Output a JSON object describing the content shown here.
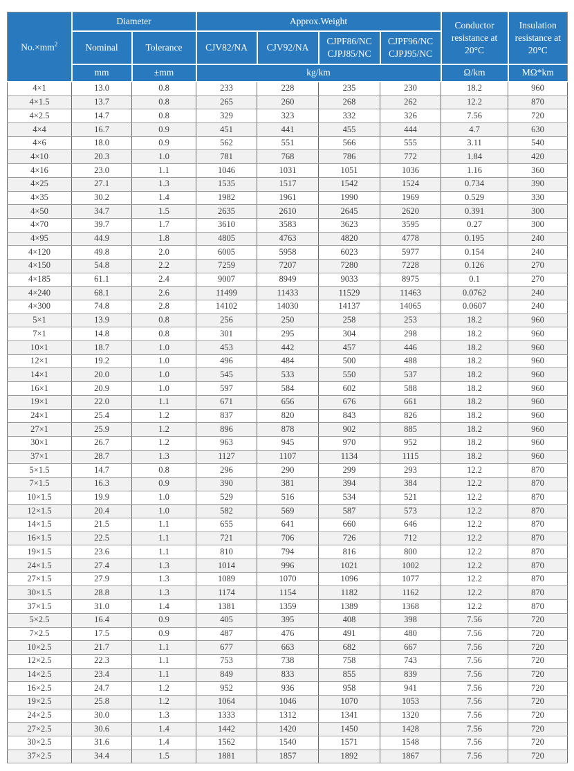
{
  "colors": {
    "header_blue": "#2979BE",
    "row_alt_gray": "#F1F1F1",
    "header_text": "#FFFFFF",
    "body_text": "#3D3D3D"
  },
  "table": {
    "header": {
      "no_label": "No.×mm",
      "no_sup": "2",
      "diameter": "Diameter",
      "nominal": "Nominal",
      "tolerance": "Tolerance",
      "approx_weight": "Approx.Weight",
      "cjv82": "CJV82/NA",
      "cjv92": "CJV92/NA",
      "cjpf86_line1": "CJPF86/NC",
      "cjpf86_line2": "CJPJ85/NC",
      "cjpf96_line1": "CJPF96/NC",
      "cjpf96_line2": "CJPJ95/NC",
      "conductor_resistance": "Conductor resistance at 20°C",
      "insulation_resistance": "Insulation resistance at 20°C"
    },
    "units": {
      "mm": "mm",
      "tolerance_mm": "±mm",
      "weight": "kg/km",
      "conductor": "Ω/km",
      "insulation": "MΩ*km"
    },
    "rows": [
      [
        "4×1",
        "13.0",
        "0.8",
        "233",
        "228",
        "235",
        "230",
        "18.2",
        "960"
      ],
      [
        "4×1.5",
        "13.7",
        "0.8",
        "265",
        "260",
        "268",
        "262",
        "12.2",
        "870"
      ],
      [
        "4×2.5",
        "14.7",
        "0.8",
        "329",
        "323",
        "332",
        "326",
        "7.56",
        "720"
      ],
      [
        "4×4",
        "16.7",
        "0.9",
        "451",
        "441",
        "455",
        "444",
        "4.7",
        "630"
      ],
      [
        "4×6",
        "18.0",
        "0.9",
        "562",
        "551",
        "566",
        "555",
        "3.11",
        "540"
      ],
      [
        "4×10",
        "20.3",
        "1.0",
        "781",
        "768",
        "786",
        "772",
        "1.84",
        "420"
      ],
      [
        "4×16",
        "23.0",
        "1.1",
        "1046",
        "1031",
        "1051",
        "1036",
        "1.16",
        "360"
      ],
      [
        "4×25",
        "27.1",
        "1.3",
        "1535",
        "1517",
        "1542",
        "1524",
        "0.734",
        "390"
      ],
      [
        "4×35",
        "30.2",
        "1.4",
        "1982",
        "1961",
        "1990",
        "1969",
        "0.529",
        "330"
      ],
      [
        "4×50",
        "34.7",
        "1.5",
        "2635",
        "2610",
        "2645",
        "2620",
        "0.391",
        "300"
      ],
      [
        "4×70",
        "39.7",
        "1.7",
        "3610",
        "3583",
        "3623",
        "3595",
        "0.27",
        "300"
      ],
      [
        "4×95",
        "44.9",
        "1.8",
        "4805",
        "4763",
        "4820",
        "4778",
        "0.195",
        "240"
      ],
      [
        "4×120",
        "49.8",
        "2.0",
        "6005",
        "5958",
        "6023",
        "5977",
        "0.154",
        "240"
      ],
      [
        "4×150",
        "54.8",
        "2.2",
        "7259",
        "7207",
        "7280",
        "7228",
        "0.126",
        "270"
      ],
      [
        "4×185",
        "61.1",
        "2.4",
        "9007",
        "8949",
        "9033",
        "8975",
        "0.1",
        "270"
      ],
      [
        "4×240",
        "68.1",
        "2.6",
        "11499",
        "11433",
        "11529",
        "11463",
        "0.0762",
        "240"
      ],
      [
        "4×300",
        "74.8",
        "2.8",
        "14102",
        "14030",
        "14137",
        "14065",
        "0.0607",
        "240"
      ],
      [
        "5×1",
        "13.9",
        "0.8",
        "256",
        "250",
        "258",
        "253",
        "18.2",
        "960"
      ],
      [
        "7×1",
        "14.8",
        "0.8",
        "301",
        "295",
        "304",
        "298",
        "18.2",
        "960"
      ],
      [
        "10×1",
        "18.7",
        "1.0",
        "453",
        "442",
        "457",
        "446",
        "18.2",
        "960"
      ],
      [
        "12×1",
        "19.2",
        "1.0",
        "496",
        "484",
        "500",
        "488",
        "18.2",
        "960"
      ],
      [
        "14×1",
        "20.0",
        "1.0",
        "545",
        "533",
        "550",
        "537",
        "18.2",
        "960"
      ],
      [
        "16×1",
        "20.9",
        "1.0",
        "597",
        "584",
        "602",
        "588",
        "18.2",
        "960"
      ],
      [
        "19×1",
        "22.0",
        "1.1",
        "671",
        "656",
        "676",
        "661",
        "18.2",
        "960"
      ],
      [
        "24×1",
        "25.4",
        "1.2",
        "837",
        "820",
        "843",
        "826",
        "18.2",
        "960"
      ],
      [
        "27×1",
        "25.9",
        "1.2",
        "896",
        "878",
        "902",
        "885",
        "18.2",
        "960"
      ],
      [
        "30×1",
        "26.7",
        "1.2",
        "963",
        "945",
        "970",
        "952",
        "18.2",
        "960"
      ],
      [
        "37×1",
        "28.7",
        "1.3",
        "1127",
        "1107",
        "1134",
        "1115",
        "18.2",
        "960"
      ],
      [
        "5×1.5",
        "14.7",
        "0.8",
        "296",
        "290",
        "299",
        "293",
        "12.2",
        "870"
      ],
      [
        "7×1.5",
        "16.3",
        "0.9",
        "390",
        "381",
        "394",
        "384",
        "12.2",
        "870"
      ],
      [
        "10×1.5",
        "19.9",
        "1.0",
        "529",
        "516",
        "534",
        "521",
        "12.2",
        "870"
      ],
      [
        "12×1.5",
        "20.4",
        "1.0",
        "582",
        "569",
        "587",
        "573",
        "12.2",
        "870"
      ],
      [
        "14×1.5",
        "21.5",
        "1.1",
        "655",
        "641",
        "660",
        "646",
        "12.2",
        "870"
      ],
      [
        "16×1.5",
        "22.5",
        "1.1",
        "721",
        "706",
        "726",
        "712",
        "12.2",
        "870"
      ],
      [
        "19×1.5",
        "23.6",
        "1.1",
        "810",
        "794",
        "816",
        "800",
        "12.2",
        "870"
      ],
      [
        "24×1.5",
        "27.4",
        "1.3",
        "1014",
        "996",
        "1021",
        "1002",
        "12.2",
        "870"
      ],
      [
        "27×1.5",
        "27.9",
        "1.3",
        "1089",
        "1070",
        "1096",
        "1077",
        "12.2",
        "870"
      ],
      [
        "30×1.5",
        "28.8",
        "1.3",
        "1174",
        "1154",
        "1182",
        "1162",
        "12.2",
        "870"
      ],
      [
        "37×1.5",
        "31.0",
        "1.4",
        "1381",
        "1359",
        "1389",
        "1368",
        "12.2",
        "870"
      ],
      [
        "5×2.5",
        "16.4",
        "0.9",
        "405",
        "395",
        "408",
        "398",
        "7.56",
        "720"
      ],
      [
        "7×2.5",
        "17.5",
        "0.9",
        "487",
        "476",
        "491",
        "480",
        "7.56",
        "720"
      ],
      [
        "10×2.5",
        "21.7",
        "1.1",
        "677",
        "663",
        "682",
        "667",
        "7.56",
        "720"
      ],
      [
        "12×2.5",
        "22.3",
        "1.1",
        "753",
        "738",
        "758",
        "743",
        "7.56",
        "720"
      ],
      [
        "14×2.5",
        "23.4",
        "1.1",
        "849",
        "833",
        "855",
        "839",
        "7.56",
        "720"
      ],
      [
        "16×2.5",
        "24.7",
        "1.2",
        "952",
        "936",
        "958",
        "941",
        "7.56",
        "720"
      ],
      [
        "19×2.5",
        "25.8",
        "1.2",
        "1064",
        "1046",
        "1070",
        "1053",
        "7.56",
        "720"
      ],
      [
        "24×2.5",
        "30.0",
        "1.3",
        "1333",
        "1312",
        "1341",
        "1320",
        "7.56",
        "720"
      ],
      [
        "27×2.5",
        "30.6",
        "1.4",
        "1442",
        "1420",
        "1450",
        "1428",
        "7.56",
        "720"
      ],
      [
        "30×2.5",
        "31.6",
        "1.4",
        "1562",
        "1540",
        "1571",
        "1548",
        "7.56",
        "720"
      ],
      [
        "37×2.5",
        "34.4",
        "1.5",
        "1881",
        "1857",
        "1892",
        "1867",
        "7.56",
        "720"
      ]
    ]
  }
}
